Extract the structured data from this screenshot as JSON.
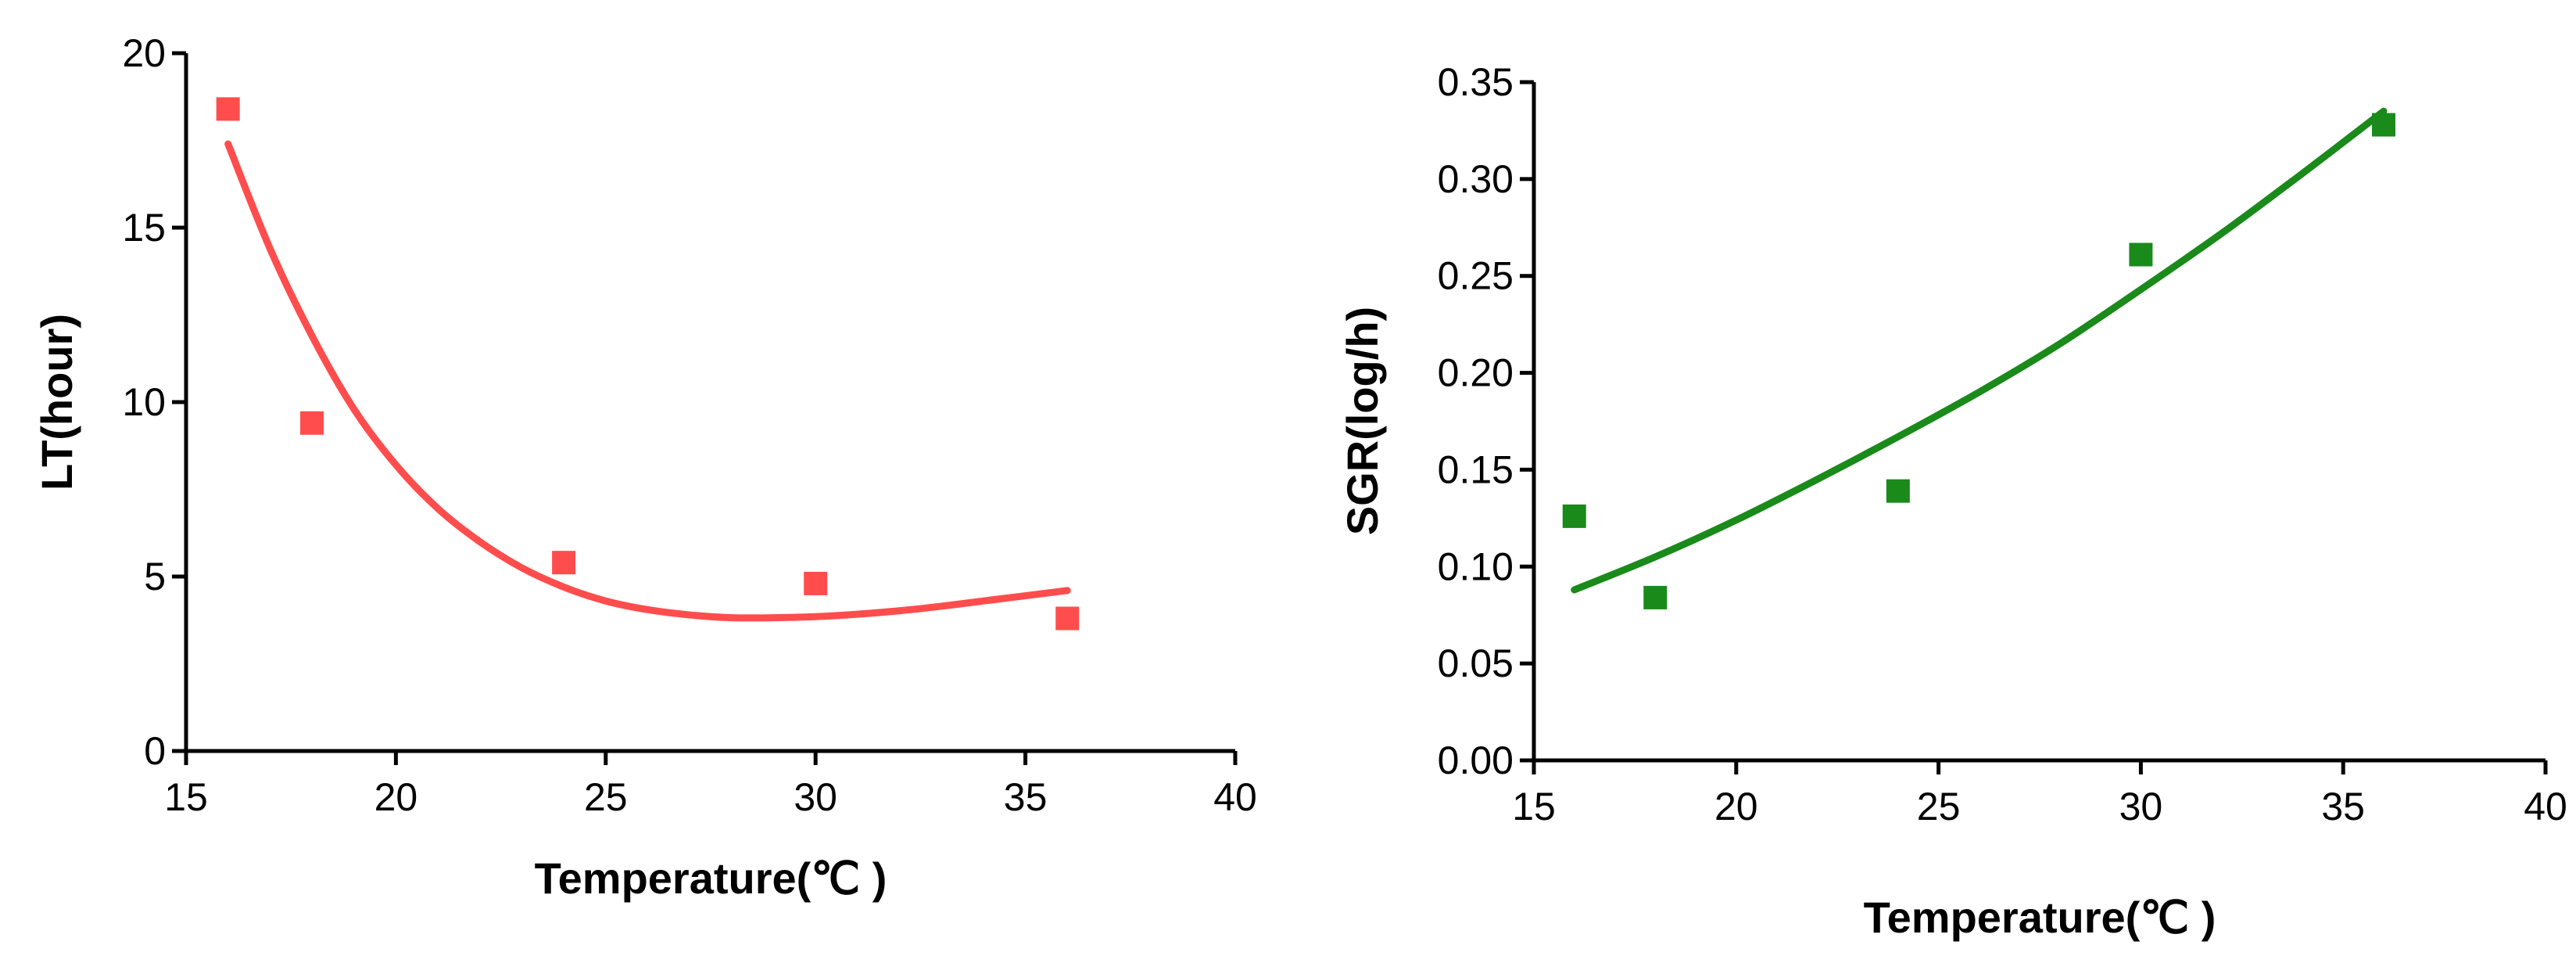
{
  "chart_data": [
    {
      "type": "scatter",
      "title": "",
      "xlabel": "Temperature(℃ )",
      "ylabel": "LT(hour)",
      "xlim": [
        15,
        40
      ],
      "ylim": [
        0,
        20
      ],
      "xticks": [
        15,
        20,
        25,
        30,
        35,
        40
      ],
      "yticks": [
        0,
        5,
        10,
        15,
        20
      ],
      "xtick_labels": [
        "15",
        "20",
        "25",
        "30",
        "35",
        "40"
      ],
      "ytick_labels": [
        "0",
        "5",
        "10",
        "15",
        "20"
      ],
      "grid": false,
      "legend": "none",
      "color": "#ff4d4d",
      "marker": "square",
      "series": [
        {
          "x": [
            16,
            18,
            24,
            30,
            36
          ],
          "y": [
            18.4,
            9.4,
            5.4,
            4.8,
            3.8
          ]
        }
      ],
      "fit_curve": {
        "x": [
          16,
          17,
          18,
          19,
          20,
          21,
          22,
          23,
          24,
          25,
          26,
          27,
          28,
          29,
          30,
          31,
          32,
          33,
          34,
          35,
          36
        ],
        "y": [
          17.4,
          14.4,
          11.9,
          9.8,
          8.2,
          6.95,
          6.0,
          5.25,
          4.7,
          4.3,
          4.05,
          3.9,
          3.82,
          3.82,
          3.85,
          3.92,
          4.02,
          4.15,
          4.3,
          4.45,
          4.6
        ]
      }
    },
    {
      "type": "scatter",
      "title": "",
      "xlabel": "Temperature(℃ )",
      "ylabel": "SGR(log/h)",
      "xlim": [
        15,
        40
      ],
      "ylim": [
        0.0,
        0.35
      ],
      "xticks": [
        15,
        20,
        25,
        30,
        35,
        40
      ],
      "yticks": [
        0.0,
        0.05,
        0.1,
        0.15,
        0.2,
        0.25,
        0.3,
        0.35
      ],
      "xtick_labels": [
        "15",
        "20",
        "25",
        "30",
        "35",
        "40"
      ],
      "ytick_labels": [
        "0.00",
        "0.05",
        "0.10",
        "0.15",
        "0.20",
        "0.25",
        "0.30",
        "0.35"
      ],
      "grid": false,
      "legend": "none",
      "color": "#1a8a1a",
      "marker": "square",
      "series": [
        {
          "x": [
            16,
            18,
            24,
            30,
            36
          ],
          "y": [
            0.126,
            0.084,
            0.139,
            0.261,
            0.328
          ]
        }
      ],
      "fit_curve": {
        "x": [
          16,
          18,
          20,
          22,
          24,
          26,
          28,
          30,
          32,
          34,
          36
        ],
        "y": [
          0.088,
          0.105,
          0.124,
          0.145,
          0.167,
          0.19,
          0.215,
          0.243,
          0.272,
          0.303,
          0.335
        ]
      }
    }
  ]
}
